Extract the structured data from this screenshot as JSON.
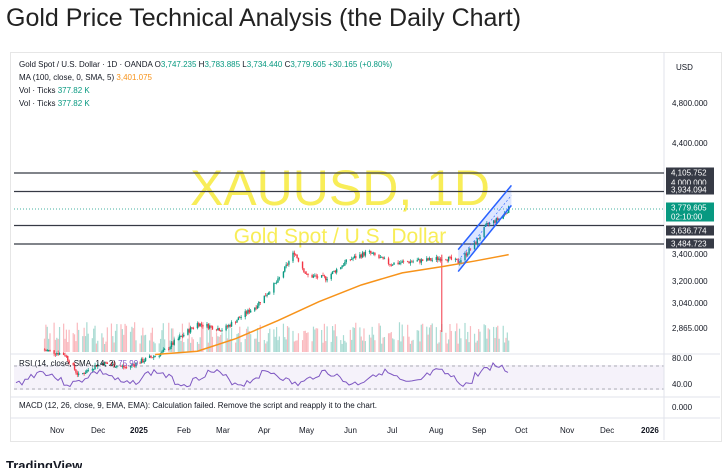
{
  "page_title": "Gold Price Technical Analysis (the Daily Chart)",
  "legend": {
    "symbol": "Gold Spot / U.S. Dollar · 1D · OANDA",
    "o_label": "O",
    "o_value": "3,747.235",
    "h_label": "H",
    "h_value": "3,783.885",
    "l_label": "L",
    "l_value": "3,734.440",
    "c_label": "C",
    "c_value": "3,779.605",
    "change": "+30.165 (+0.80%)",
    "ma_label": "MA (100, close, 0, SMA, 5)",
    "ma_value": "3,401.075",
    "vol1_label": "Vol · Ticks",
    "vol1_value": "377.82 K",
    "vol2_label": "Vol · Ticks",
    "vol2_value": "377.82 K"
  },
  "currency_label": "USD",
  "watermark": {
    "symbol": "XAUUSD, 1D",
    "name": "Gold Spot / U.S. Dollar"
  },
  "rsi_legend": {
    "label": "RSI (14, close, SMA, 14, 2)",
    "value": "75.99"
  },
  "macd_legend": "MACD (12, 26, close, 9, EMA, EMA): Calculation failed. Remove the script and reapply it to the chart.",
  "price_badges": [
    {
      "text": "4,105.752",
      "bg": "#363a45",
      "fg": "#ffffff"
    },
    {
      "text": "4,000.000",
      "bg": "#363a45",
      "fg": "#ffffff"
    },
    {
      "text": "3,934.094",
      "bg": "#363a45",
      "fg": "#ffffff"
    },
    {
      "text": "3,779.605",
      "bg": "#089981",
      "fg": "#ffffff"
    },
    {
      "text": "02:10:00",
      "bg": "#089981",
      "fg": "#ffffff"
    },
    {
      "text": "3,636.774",
      "bg": "#363a45",
      "fg": "#ffffff"
    },
    {
      "text": "3,484.723",
      "bg": "#363a45",
      "fg": "#ffffff"
    }
  ],
  "logo_text": "TradingView",
  "colors": {
    "up": "#089981",
    "down": "#f23645",
    "ma": "#f7931a",
    "rsi": "#7e57c2",
    "channel": "#2962ff",
    "watermark": "#f5e400",
    "level_line": "#363a45"
  },
  "chart_data": {
    "type": "candlestick",
    "x": [
      "Nov",
      "Dec",
      "2025",
      "Feb",
      "Mar",
      "Apr",
      "May",
      "Jun",
      "Jul",
      "Aug",
      "Sep",
      "Oct",
      "Nov",
      "Dec",
      "2026"
    ],
    "y_ticks": [
      "4,800.000",
      "4,400.000",
      "3,400.000",
      "3,200.000",
      "3,040.000",
      "2,865.000"
    ],
    "price_close_path": [
      [
        "2024-10-20",
        2730
      ],
      [
        "2024-11-05",
        2700
      ],
      [
        "2024-11-15",
        2570
      ],
      [
        "2024-12-01",
        2650
      ],
      [
        "2024-12-20",
        2620
      ],
      [
        "2025-01-15",
        2710
      ],
      [
        "2025-02-10",
        2900
      ],
      [
        "2025-03-01",
        2860
      ],
      [
        "2025-03-25",
        3020
      ],
      [
        "2025-04-10",
        3200
      ],
      [
        "2025-04-22",
        3420
      ],
      [
        "2025-05-01",
        3240
      ],
      [
        "2025-05-15",
        3220
      ],
      [
        "2025-06-01",
        3360
      ],
      [
        "2025-06-15",
        3420
      ],
      [
        "2025-07-01",
        3330
      ],
      [
        "2025-07-20",
        3350
      ],
      [
        "2025-08-01",
        3360
      ],
      [
        "2025-08-10",
        3380
      ],
      [
        "2025-08-20",
        3340
      ],
      [
        "2025-09-01",
        3480
      ],
      [
        "2025-09-10",
        3640
      ],
      [
        "2025-09-20",
        3700
      ],
      [
        "2025-09-26",
        3779.605
      ]
    ],
    "ma_100_path": [
      [
        "2025-01-10",
        2700
      ],
      [
        "2025-02-10",
        2720
      ],
      [
        "2025-03-10",
        2800
      ],
      [
        "2025-04-10",
        2920
      ],
      [
        "2025-05-10",
        3050
      ],
      [
        "2025-06-10",
        3170
      ],
      [
        "2025-07-10",
        3260
      ],
      [
        "2025-08-10",
        3310
      ],
      [
        "2025-09-01",
        3350
      ],
      [
        "2025-09-26",
        3400
      ]
    ],
    "horizontal_levels": [
      4105.752,
      3934.094,
      3636.774,
      3484.723
    ],
    "channel": {
      "lower": [
        [
          "2025-08-20",
          3270
        ],
        [
          "2025-09-28",
          3810
        ]
      ],
      "upper": [
        [
          "2025-08-20",
          3440
        ],
        [
          "2025-09-28",
          3990
        ]
      ]
    },
    "rsi_levels": [
      "80.00",
      "40.00"
    ],
    "macd_level": "0.000"
  }
}
